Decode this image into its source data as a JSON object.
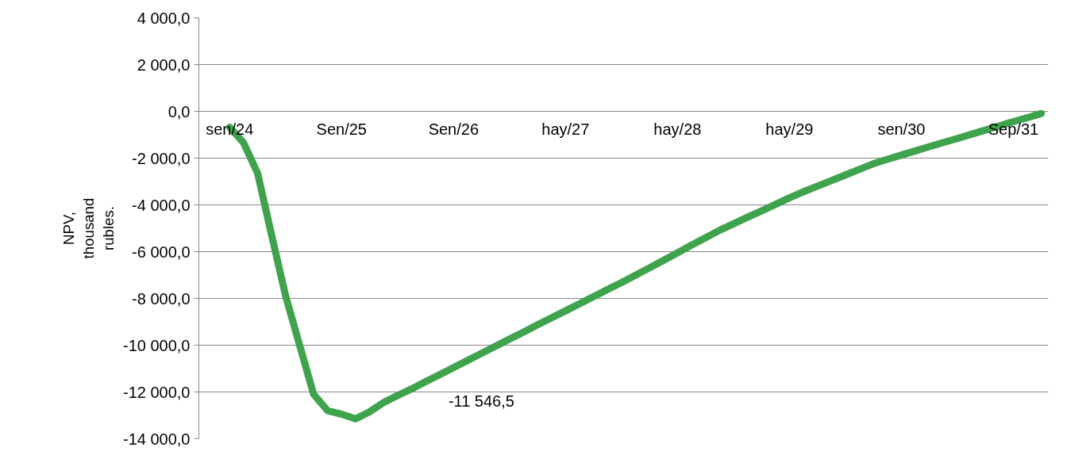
{
  "chart_data": {
    "type": "line",
    "ylabel": "NPV, thousand rubles.",
    "categories": [
      "sen/24",
      null,
      null,
      null,
      null,
      null,
      null,
      null,
      "Sen/25",
      null,
      null,
      null,
      null,
      null,
      null,
      null,
      "Sen/26",
      null,
      null,
      null,
      null,
      null,
      null,
      null,
      "hay/27",
      null,
      null,
      null,
      null,
      null,
      null,
      null,
      "hay/28",
      null,
      null,
      null,
      null,
      null,
      null,
      null,
      "hay/29",
      null,
      null,
      null,
      null,
      null,
      null,
      null,
      "sen/30",
      null,
      null,
      null,
      null,
      null,
      null,
      null,
      "Sep/31",
      null,
      null
    ],
    "series": [
      {
        "color": "#3fa34d",
        "values": [
          -680,
          -1350,
          -2650,
          -5300,
          -7900,
          -10000,
          -12100,
          -12800,
          -12950,
          -13150,
          -12850,
          -12450,
          -12150,
          -11870,
          -11560,
          -11260,
          -10960,
          -10650,
          -10350,
          -10040,
          -9740,
          -9440,
          -9130,
          -8830,
          -8530,
          -8230,
          -7920,
          -7620,
          -7320,
          -7010,
          -6690,
          -6370,
          -6050,
          -5720,
          -5410,
          -5090,
          -4810,
          -4530,
          -4260,
          -3980,
          -3700,
          -3440,
          -3200,
          -2960,
          -2720,
          -2480,
          -2240,
          -2050,
          -1870,
          -1690,
          -1510,
          -1330,
          -1160,
          -980,
          -800,
          -620,
          -440,
          -270,
          -90
        ]
      }
    ],
    "ylim": [
      -14000,
      4000
    ],
    "yticks": [
      {
        "value": -14000,
        "label": "-14 000,0"
      },
      {
        "value": -12000,
        "label": "-12 000,0"
      },
      {
        "value": -10000,
        "label": "-10 000,0"
      },
      {
        "value": -8000,
        "label": "-8 000,0"
      },
      {
        "value": -6000,
        "label": "-6 000,0"
      },
      {
        "value": -4000,
        "label": "-4 000,0"
      },
      {
        "value": -2000,
        "label": "-2 000,0"
      },
      {
        "value": 0,
        "label": "0,0"
      },
      {
        "value": 2000,
        "label": "2 000,0"
      },
      {
        "value": 4000,
        "label": "4 000,0"
      }
    ],
    "annotations": [
      "-11 546,5"
    ],
    "grid": "y",
    "marker": "none",
    "line_style": "solid"
  }
}
